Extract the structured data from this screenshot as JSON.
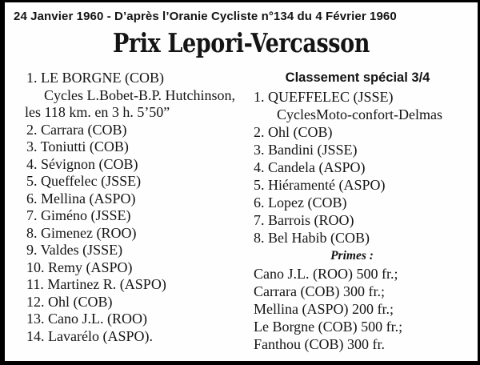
{
  "header": {
    "source_line": "24 Janvier 1960 - D’après l’Oranie Cycliste n°134 du 4 Février 1960",
    "title": "Prix Lepori-Vercasson"
  },
  "general_classification": {
    "entries": [
      "1. LE BORGNE (COB)",
      "2. Carrara (COB)",
      "3. Toniutti (COB)",
      "4. Sévignon (COB)",
      "5. Queffelec (JSSE)",
      "6. Mellina (ASPO)",
      "7. Giméno (JSSE)",
      "8. Gimenez (ROO)",
      "9. Valdes (JSSE)",
      "10. Remy (ASPO)",
      "11. Martinez R. (ASPO)",
      "12. Ohl (COB)",
      "13. Cano J.L. (ROO)",
      "14. Lavarélo (ASPO)."
    ],
    "winner_sponsor": "Cycles L.Bobet-B.P. Hutchinson,",
    "race_distance_time": "les 118 km. en 3 h. 5’50”"
  },
  "special_classification": {
    "heading": "Classement spécial 3/4",
    "entries": [
      "1. QUEFFELEC (JSSE)",
      "2. Ohl (COB)",
      "3. Bandini (JSSE)",
      "4. Candela (ASPO)",
      "5. Hiéramenté (ASPO)",
      "6. Lopez (COB)",
      "7. Barrois (ROO)",
      "8. Bel Habib (COB)"
    ],
    "winner_sponsor": "CyclesMoto-confort-Delmas",
    "primes_heading": "Primes :",
    "primes": [
      "Cano J.L. (ROO) 500 fr.;",
      "Carrara (COB) 300 fr.;",
      "Mellina (ASPO) 200 fr.;",
      "Le Borgne (COB) 500 fr.;",
      "Fanthou (COB) 300 fr."
    ]
  }
}
